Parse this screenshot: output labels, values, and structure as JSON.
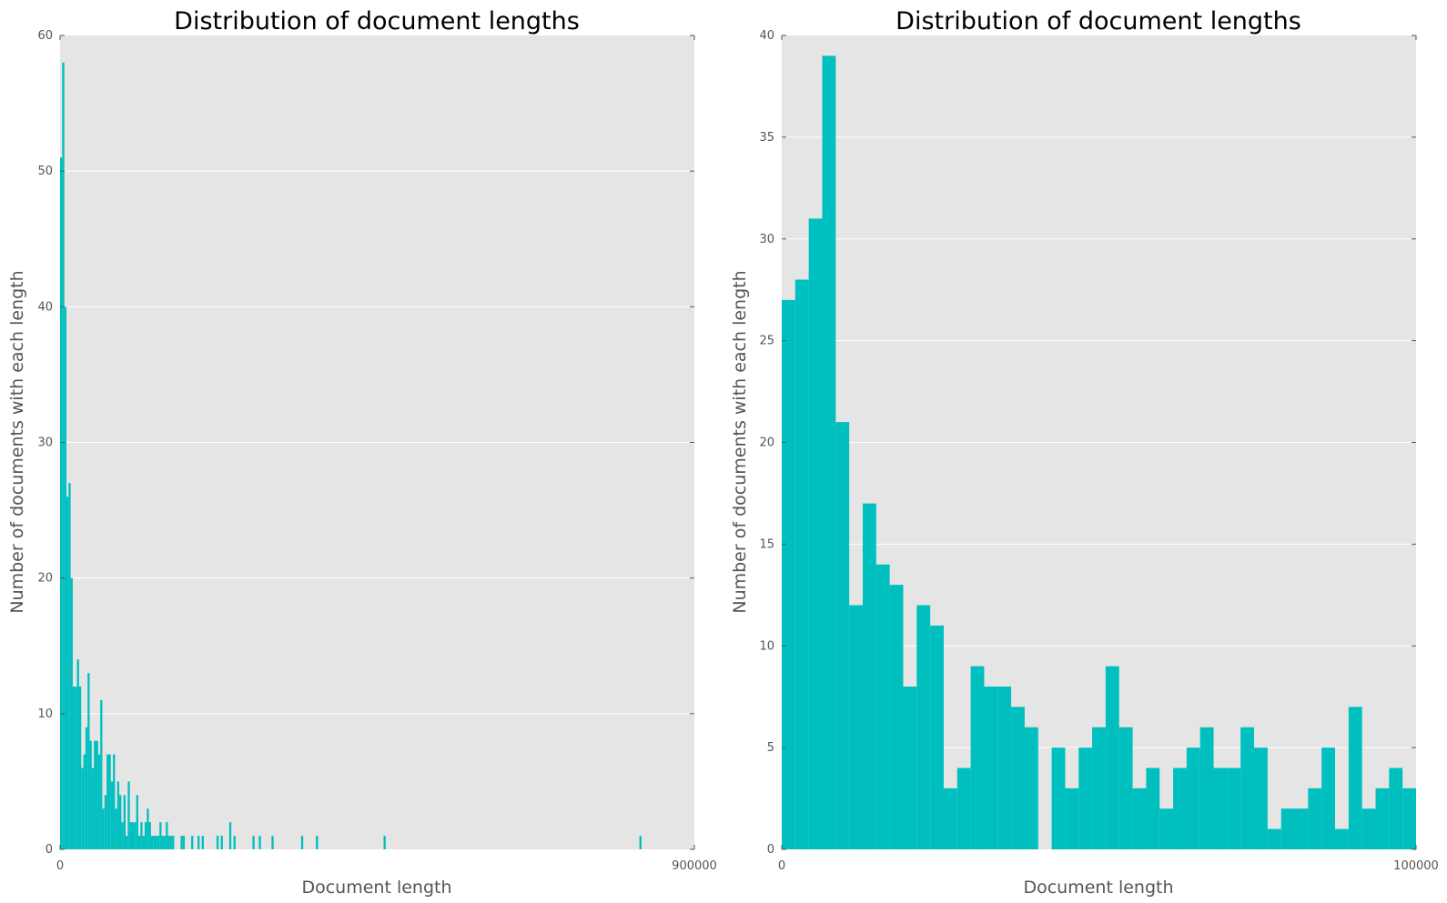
{
  "chart_data": [
    {
      "type": "bar",
      "title": "Distribution of document lengths",
      "xlabel": "Document length",
      "ylabel": "Number of documents with each length",
      "xlim": [
        0,
        900000
      ],
      "ylim": [
        0,
        60
      ],
      "xticks": [
        "0",
        "900000"
      ],
      "yticks": [
        "0",
        "10",
        "20",
        "30",
        "40",
        "50",
        "60"
      ],
      "grid": true,
      "bar_color": "#00bfbf",
      "background": "#e5e5e5",
      "bin_width": 3000,
      "bins": [
        [
          0,
          51
        ],
        [
          3000,
          58
        ],
        [
          6000,
          40
        ],
        [
          9000,
          26
        ],
        [
          12000,
          27
        ],
        [
          15000,
          20
        ],
        [
          18000,
          12
        ],
        [
          21000,
          12
        ],
        [
          24000,
          14
        ],
        [
          27000,
          12
        ],
        [
          30000,
          6
        ],
        [
          33000,
          7
        ],
        [
          36000,
          9
        ],
        [
          39000,
          13
        ],
        [
          42000,
          8
        ],
        [
          45000,
          6
        ],
        [
          48000,
          8
        ],
        [
          51000,
          8
        ],
        [
          54000,
          7
        ],
        [
          57000,
          11
        ],
        [
          60000,
          3
        ],
        [
          63000,
          4
        ],
        [
          66000,
          7
        ],
        [
          69000,
          7
        ],
        [
          72000,
          5
        ],
        [
          75000,
          7
        ],
        [
          78000,
          3
        ],
        [
          81000,
          5
        ],
        [
          84000,
          4
        ],
        [
          87000,
          2
        ],
        [
          90000,
          4
        ],
        [
          93000,
          1
        ],
        [
          96000,
          5
        ],
        [
          99000,
          2
        ],
        [
          102000,
          2
        ],
        [
          105000,
          2
        ],
        [
          108000,
          4
        ],
        [
          111000,
          1
        ],
        [
          114000,
          2
        ],
        [
          117000,
          1
        ],
        [
          120000,
          2
        ],
        [
          123000,
          3
        ],
        [
          126000,
          2
        ],
        [
          129000,
          1
        ],
        [
          132000,
          1
        ],
        [
          135000,
          1
        ],
        [
          138000,
          1
        ],
        [
          141000,
          2
        ],
        [
          144000,
          1
        ],
        [
          147000,
          1
        ],
        [
          150000,
          2
        ],
        [
          153000,
          1
        ],
        [
          156000,
          1
        ],
        [
          159000,
          1
        ],
        [
          171000,
          1
        ],
        [
          174000,
          1
        ],
        [
          186000,
          1
        ],
        [
          195000,
          1
        ],
        [
          201000,
          1
        ],
        [
          222000,
          1
        ],
        [
          228000,
          1
        ],
        [
          240000,
          2
        ],
        [
          246000,
          1
        ],
        [
          273000,
          1
        ],
        [
          282000,
          1
        ],
        [
          300000,
          1
        ],
        [
          342000,
          1
        ],
        [
          363000,
          1
        ],
        [
          459000,
          1
        ],
        [
          822000,
          1
        ]
      ]
    },
    {
      "type": "bar",
      "title": "Distribution of document lengths",
      "xlabel": "Document length",
      "ylabel": "Number of documents with each length",
      "xlim": [
        0,
        100000
      ],
      "ylim": [
        0,
        40
      ],
      "xticks": [
        "0",
        "100000"
      ],
      "yticks": [
        "0",
        "5",
        "10",
        "15",
        "20",
        "25",
        "30",
        "35",
        "40"
      ],
      "grid": true,
      "bar_color": "#00bfbf",
      "background": "#e5e5e5",
      "bin_width": 2127.66,
      "values": [
        27,
        28,
        31,
        39,
        21,
        12,
        17,
        14,
        13,
        8,
        12,
        11,
        3,
        4,
        9,
        8,
        8,
        7,
        6,
        0,
        5,
        3,
        5,
        6,
        9,
        6,
        3,
        4,
        2,
        4,
        5,
        6,
        4,
        4,
        6,
        5,
        1,
        2,
        2,
        3,
        5,
        1,
        7,
        2,
        3,
        4,
        3
      ]
    }
  ]
}
